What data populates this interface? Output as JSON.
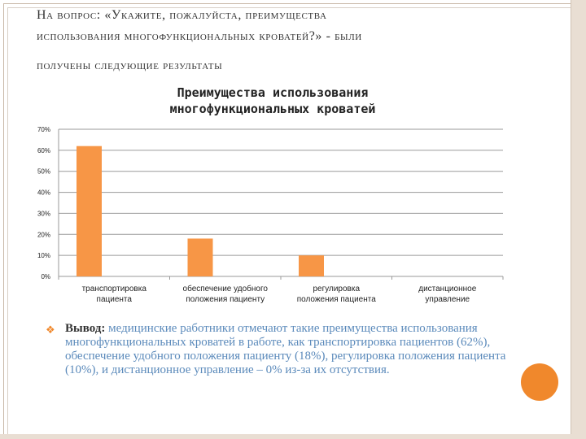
{
  "slide": {
    "heading_line1": "На вопрос: «Укажите, пожалуйста, преимущества",
    "heading_line2": "использования многофункциональных кроватей?» - были",
    "heading_line3": "получены следующие результаты",
    "conclusion_lead": "Вывод:",
    "conclusion_text": " медицинские работники отмечают такие преимущества использования многофункциональных кроватей в работе, как транспортировка пациентов (62%), обеспечение удобного положения пациенту (18%), регулировка положения пациента (10%), и дистанционное управление – 0% из-за их отсутствия."
  },
  "chart_data": {
    "type": "bar",
    "title_line1": "Преимущества использования",
    "title_line2": "многофункциональных кроватей",
    "categories": [
      [
        "транспортировка",
        "пациента"
      ],
      [
        "обеспечение удобного",
        "положения пациенту"
      ],
      [
        "регулировка",
        "положения пациента"
      ],
      [
        "дистанционное",
        "управление"
      ]
    ],
    "values": [
      62,
      18,
      10,
      0
    ],
    "yticks": [
      "0%",
      "10%",
      "20%",
      "30%",
      "40%",
      "50%",
      "60%",
      "70%"
    ],
    "ylim": [
      0,
      70
    ],
    "grid": true,
    "bar_color": "#f79646"
  },
  "colors": {
    "accent": "#f0882c",
    "conclusion_text": "#5b8abb"
  }
}
